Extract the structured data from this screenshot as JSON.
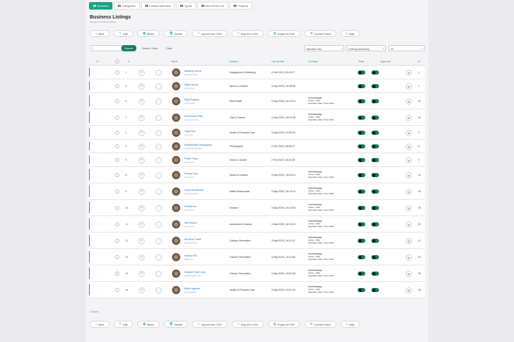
{
  "tabs": [
    {
      "label": "Business",
      "icon": "briefcase-icon"
    },
    {
      "label": "Categories",
      "icon": "folder-icon"
    },
    {
      "label": "Custom Attributes",
      "icon": "list-icon"
    },
    {
      "label": "Types",
      "icon": "tag-icon"
    },
    {
      "label": "Menu/Price List",
      "icon": "menu-icon"
    },
    {
      "label": "Projects",
      "icon": "project-icon"
    }
  ],
  "page": {
    "title": "Business Listings",
    "subtitle": "Manage the directory listings."
  },
  "toolbar": [
    {
      "label": "New",
      "icon": "plus-icon"
    },
    {
      "label": "Edit",
      "icon": "edit-icon"
    },
    {
      "label": "Batch",
      "icon": "batch-icon"
    },
    {
      "label": "Delete",
      "icon": "trash-icon"
    },
    {
      "label": "Import from CSV",
      "icon": "import-icon"
    },
    {
      "label": "Export to CSV",
      "icon": "export-icon"
    },
    {
      "label": "Export to PDF",
      "icon": "pdf-icon"
    },
    {
      "label": "Control Panel",
      "icon": "gear-icon"
    },
    {
      "label": "Help",
      "icon": "help-icon"
    }
  ],
  "search": {
    "placeholder": "",
    "button": "Search",
    "tools": "Search Tools",
    "clear": "Clear"
  },
  "selects": {
    "view": "Standard view",
    "order": "Ordering ascending",
    "limit": "20"
  },
  "columns": {
    "name": "Name",
    "category": "Category",
    "last_update": "Last Update",
    "package": "Package",
    "state": "State",
    "approved": "Approved",
    "id": "ID"
  },
  "rows": [
    {
      "idx": "1",
      "name": "Wedding Venue",
      "slug": "wedding-venue",
      "category": "Engagement & Wedding",
      "updated": "2 Feb 2023 | 16:20:07",
      "package": [],
      "fav": false,
      "id": "1",
      "bar": "#1aa386"
    },
    {
      "idx": "3",
      "name": "Water Sports",
      "slug": "water-sports",
      "category": "Sports & Outdoor",
      "updated": "3 May 2023 | 16:48:33",
      "package": [],
      "fav": false,
      "id": "4",
      "bar": "#1aa386"
    },
    {
      "idx": "6",
      "name": "Real Property",
      "slug": "real-property",
      "category": "Real Estate",
      "updated": "3 May 2023 | 16:13:34",
      "package": [
        "Gold Package",
        "Active - Paid",
        "Expiration date: 3 Nov 2023"
      ],
      "fav": false,
      "id": "30",
      "bar": "#1aa386"
    },
    {
      "idx": "7",
      "name": "Amusement Park",
      "slug": "amusement-park",
      "category": "Toys & Games",
      "updated": "3 May 2023 | 16:13:35",
      "package": [
        "Gold Package",
        "Active - Paid",
        "Expiration date: 3 Nov 2023"
      ],
      "fav": false,
      "id": "33",
      "bar": "#1aa386"
    },
    {
      "idx": "2",
      "name": "Yoga Club",
      "slug": "yoga-club",
      "category": "Health & Personal Care",
      "updated": "3 May 2023 | 10:03:32",
      "package": [],
      "fav": false,
      "id": "5",
      "bar": "#1aa386"
    },
    {
      "idx": "4",
      "name": "Professional Photography",
      "slug": "vintage-photography",
      "category": "Photography",
      "updated": "2 Feb 2023 | 16:34:27",
      "package": [],
      "fav": true,
      "id": "8",
      "bar": "#1aa386"
    },
    {
      "idx": "5",
      "name": "Flower Shop",
      "slug": "flower-shop",
      "category": "Home & Garden",
      "updated": "2 Feb 2023 | 16:23:28",
      "package": [],
      "fav": false,
      "id": "9",
      "bar": "#1aa386"
    },
    {
      "idx": "8",
      "name": "Fitness Gym",
      "slug": "fitness-gym",
      "category": "Sports & Outdoor",
      "updated": "3 May 2023 | 16:13:14",
      "package": [
        "Gold Package",
        "Active - Paid",
        "Expiration date: 3 Nov 2023"
      ],
      "fav": false,
      "id": "43",
      "bar": "#1aa386"
    },
    {
      "idx": "9",
      "name": "Lucha Restaurant",
      "slug": "lucha-restaurant",
      "category": "Italian Restaurants",
      "updated": "3 May 2023 | 16:13:15",
      "package": [
        "Gold Package",
        "Active - Paid",
        "Expiration date: 3 Nov 2023"
      ],
      "fav": false,
      "id": "46",
      "bar": "#1aa386"
    },
    {
      "idx": "10",
      "name": "Fashion Inc",
      "slug": "fashion-inc",
      "category": "Fashion",
      "updated": "3 May 2023 | 16:13:08",
      "package": [
        "Gold Package",
        "Active - Paid",
        "Expiration date: 3 Nov 2023"
      ],
      "fav": false,
      "id": "48",
      "bar": "#1aa386"
    },
    {
      "idx": "11",
      "name": "Star Motors",
      "slug": "star-motors",
      "category": "Automotive & Motors",
      "updated": "3 May 2023 | 16:13:03",
      "package": [
        "Gold Package",
        "Active - Paid",
        "Expiration date: 3 Nov 2023"
      ],
      "fav": false,
      "id": "50",
      "bar": "#1aa386"
    },
    {
      "idx": "12",
      "name": "All About Travel",
      "slug": "all-about-travel",
      "category": "Outdoor Recreation",
      "updated": "3 May 2023 | 16:12:37",
      "package": [
        "Gold Package",
        "Active - Paid",
        "Expiration date: 3 Nov 2023"
      ],
      "fav": false,
      "id": "51",
      "bar": "#1aa386"
    },
    {
      "idx": "13",
      "name": "Harbour RV",
      "slug": "harbour-rv",
      "category": "Outdoor Recreation",
      "updated": "3 May 2023 | 16:12:55",
      "package": [
        "Gold Package",
        "Active - Paid",
        "Expiration date: 3 Nov 2023"
      ],
      "fav": false,
      "id": "54",
      "bar": "#1aa386"
    },
    {
      "idx": "15",
      "name": "Seaside Yacht Club",
      "slug": "seaside-yacht-club",
      "category": "Outdoor Recreation",
      "updated": "3 May 2023 | 15:01:28",
      "package": [
        "Gold Package",
        "Active - Paid",
        "Expiration date: 3 Nov 2023"
      ],
      "fav": false,
      "id": "55",
      "bar": "#e24b4b"
    },
    {
      "idx": "16",
      "name": "Better together",
      "slug": "better-together",
      "category": "Health & Personal Care",
      "updated": "3 May 2023 | 15:01:20",
      "package": [
        "Gold Package",
        "Active - Paid",
        "Expiration date: 3 Nov 2023"
      ],
      "fav": false,
      "id": "56",
      "bar": "#1aa386"
    }
  ],
  "footer": {
    "count": "15 items"
  },
  "colors": {
    "accent": "#1aa386",
    "dark_accent": "#137c66",
    "link": "#1f6fb5",
    "danger": "#e24b4b"
  }
}
